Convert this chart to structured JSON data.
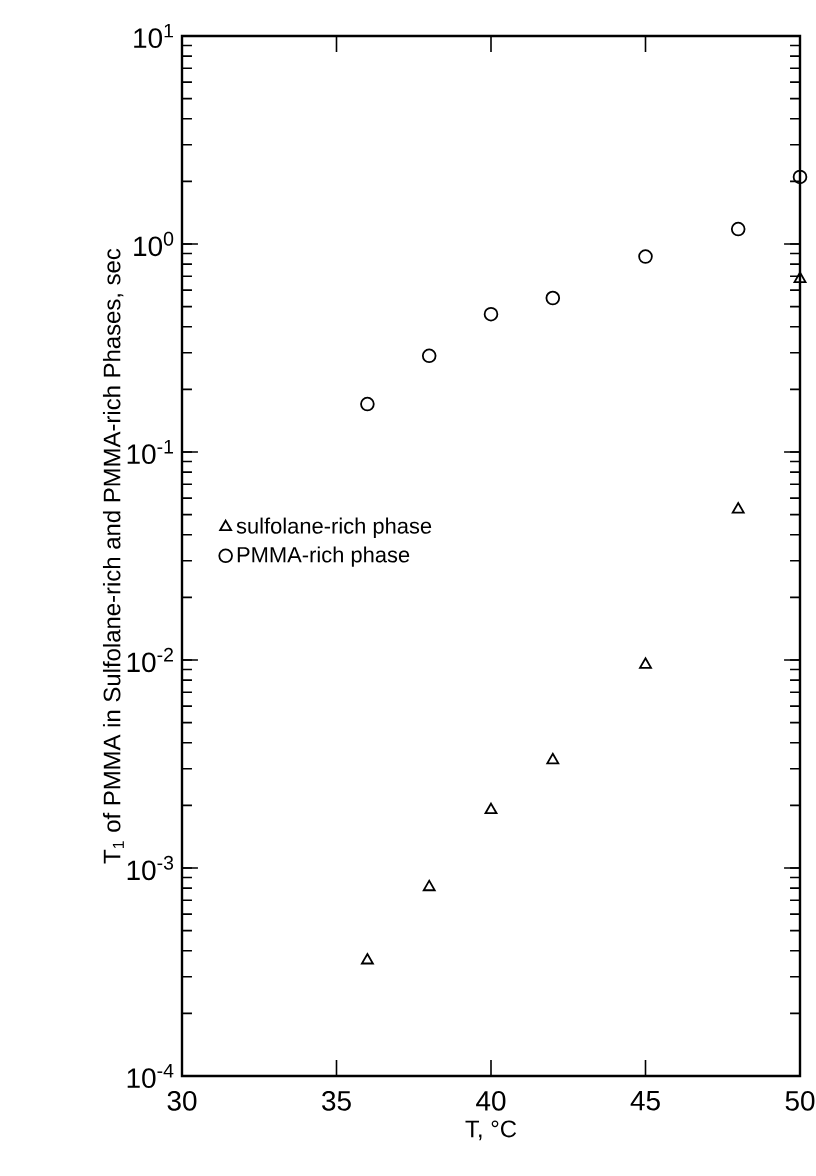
{
  "chart_data": {
    "type": "scatter",
    "xlabel": "T, °C",
    "ylabel": "T$_{1}$ of PMMA in Sulfolane-rich and PMMA-rich Phases, sec",
    "log": "y",
    "legend": "left",
    "xlim": [
      30,
      50
    ],
    "xticks": [
      30,
      35,
      40,
      45,
      50
    ],
    "ylim": [
      0.0001,
      10
    ],
    "yticks": [
      {
        "value": 0.0001,
        "label": "10$^{-4}$"
      },
      {
        "value": 0.001,
        "label": "10$^{-3}$"
      },
      {
        "value": 0.01,
        "label": "10$^{-2}$"
      },
      {
        "value": 0.1,
        "label": "10$^{-1}$"
      },
      {
        "value": 1,
        "label": "10$^{0}$"
      },
      {
        "value": 10,
        "label": "10$^{1}$"
      }
    ],
    "series": [
      {
        "name": "sulfolane-rich phase",
        "color": "#000000",
        "marker": "triangle",
        "x": [
          36,
          38,
          40,
          42,
          45,
          48,
          50
        ],
        "values": [
          0.00036,
          0.00081,
          0.0019,
          0.0033,
          0.0095,
          0.053,
          0.68
        ]
      },
      {
        "name": "PMMA-rich phase",
        "color": "#000000",
        "marker": "circle",
        "x": [
          36,
          38,
          40,
          42,
          45,
          48,
          50
        ],
        "values": [
          0.17,
          0.29,
          0.46,
          0.55,
          0.87,
          1.18,
          2.1
        ]
      }
    ]
  }
}
